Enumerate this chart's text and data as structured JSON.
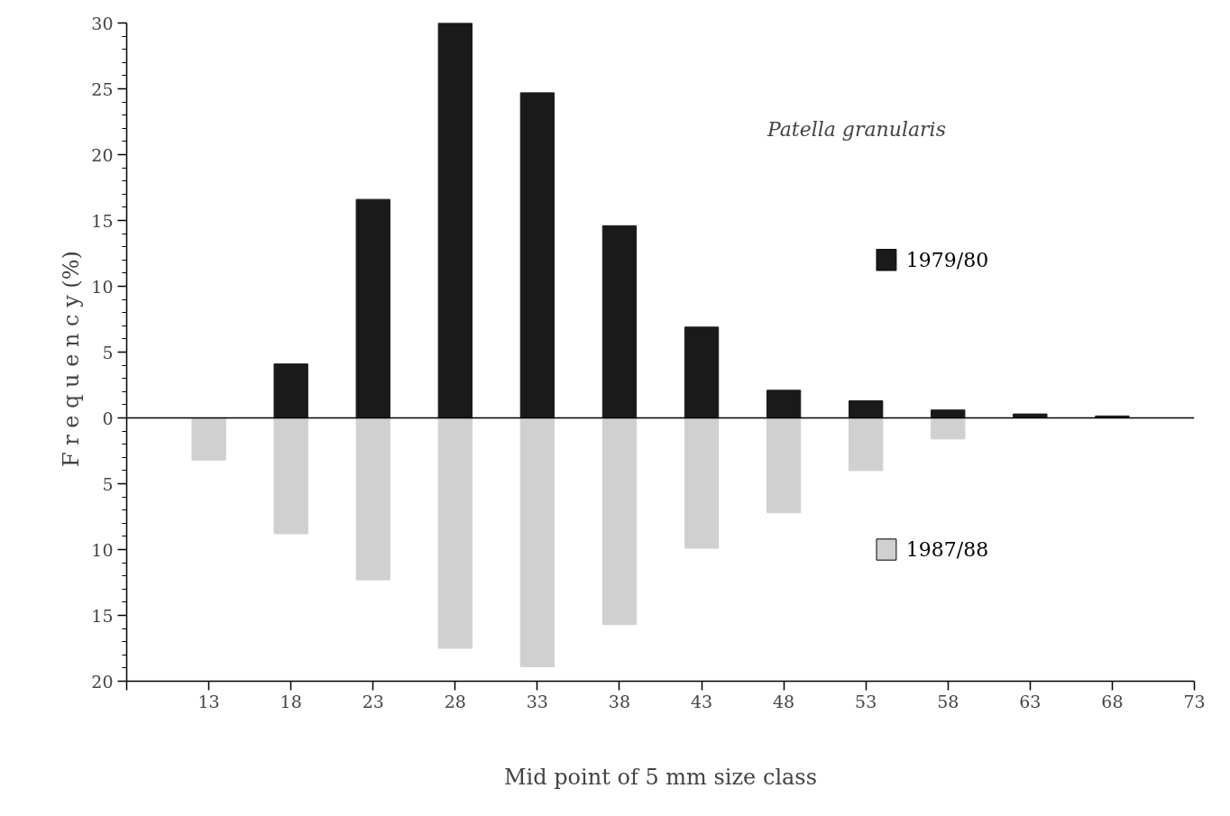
{
  "chart_data": {
    "type": "bar",
    "xlabel": "Mid point of 5 mm size class",
    "ylabel": "F r e q u e n c y   (%)",
    "x": [
      13,
      18,
      23,
      28,
      33,
      38,
      43,
      48,
      53,
      58,
      63,
      68
    ],
    "series": [
      {
        "name": "1979/80",
        "color": "#1a1a1a",
        "values": [
          null,
          4.1,
          16.6,
          30,
          24.7,
          14.6,
          6.9,
          2.1,
          1.3,
          0.6,
          0.3,
          0.15
        ]
      },
      {
        "name": "1987/88",
        "color": "#d0d0d0",
        "values": [
          -3.2,
          -8.8,
          -12.3,
          -17.5,
          -18.9,
          -15.7,
          -9.9,
          -7.2,
          -4.0,
          -1.6,
          null,
          null
        ]
      }
    ],
    "xlim": [
      8,
      73
    ],
    "xticks": [
      {
        "value": 8,
        "label": null
      },
      13,
      18,
      23,
      28,
      33,
      38,
      43,
      48,
      53,
      58,
      63,
      68,
      73
    ],
    "ylim": [
      -20,
      30
    ],
    "yticks": [
      {
        "value": -20,
        "label": "20"
      },
      {
        "value": -15,
        "label": "15"
      },
      {
        "value": -10,
        "label": "10"
      },
      {
        "value": -5,
        "label": "5"
      },
      0,
      5,
      10,
      15,
      20,
      25,
      30
    ],
    "ref_lines": [
      {
        "axis": "y",
        "value": 0
      }
    ],
    "annotations": [
      "Patella granularis"
    ],
    "stacked": true,
    "grid": false,
    "legend": "right"
  }
}
